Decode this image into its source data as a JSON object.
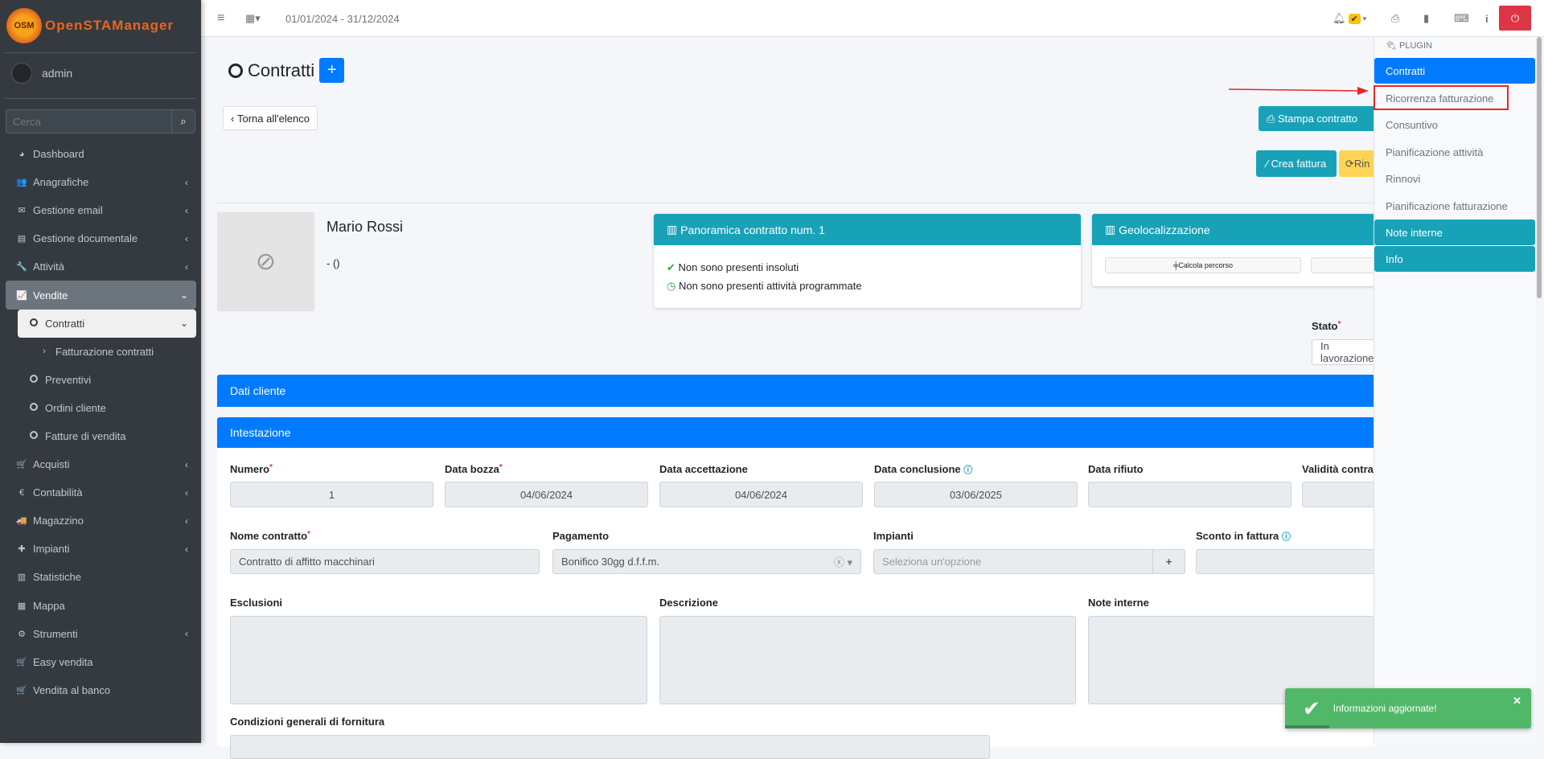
{
  "app": {
    "brand": "OpenSTAManager",
    "logo_text": "OSM",
    "user": "admin",
    "search_placeholder": "Cerca"
  },
  "sidebar": {
    "items": [
      {
        "label": "Dashboard",
        "icon": "dashboard-icon",
        "glyph": "◕",
        "chev": ""
      },
      {
        "label": "Anagrafiche",
        "icon": "users-icon",
        "glyph": "👥",
        "chev": "‹"
      },
      {
        "label": "Gestione email",
        "icon": "envelope-icon",
        "glyph": "✉",
        "chev": "‹"
      },
      {
        "label": "Gestione documentale",
        "icon": "file-icon",
        "glyph": "▤",
        "chev": "‹"
      },
      {
        "label": "Attività",
        "icon": "wrench-icon",
        "glyph": "🔧",
        "chev": "‹"
      },
      {
        "label": "Vendite",
        "icon": "chart-icon",
        "glyph": "📈",
        "chev": "⌄",
        "cls": "active"
      },
      {
        "label": "Contratti",
        "icon": "circle-icon",
        "glyph": "○",
        "chev": "⌄",
        "cls": "cur"
      },
      {
        "label": "Fatturazione contratti",
        "icon": "chevron-right-icon",
        "glyph": "›",
        "chev": "",
        "cls": "sub2"
      },
      {
        "label": "Preventivi",
        "icon": "circle-icon",
        "glyph": "○",
        "chev": "",
        "cls": "sub"
      },
      {
        "label": "Ordini cliente",
        "icon": "circle-icon",
        "glyph": "○",
        "chev": "",
        "cls": "sub"
      },
      {
        "label": "Fatture di vendita",
        "icon": "circle-icon",
        "glyph": "○",
        "chev": "",
        "cls": "sub"
      },
      {
        "label": "Acquisti",
        "icon": "cart-icon",
        "glyph": "🛒",
        "chev": "‹"
      },
      {
        "label": "Contabilità",
        "icon": "euro-icon",
        "glyph": "€",
        "chev": "‹"
      },
      {
        "label": "Magazzino",
        "icon": "truck-icon",
        "glyph": "🚚",
        "chev": "‹"
      },
      {
        "label": "Impianti",
        "icon": "puzzle-icon",
        "glyph": "✚",
        "chev": "‹"
      },
      {
        "label": "Statistiche",
        "icon": "bar-chart-icon",
        "glyph": "▥",
        "chev": ""
      },
      {
        "label": "Mappa",
        "icon": "map-icon",
        "glyph": "▦",
        "chev": ""
      },
      {
        "label": "Strumenti",
        "icon": "cog-icon",
        "glyph": "⚙",
        "chev": "‹"
      },
      {
        "label": "Easy vendita",
        "icon": "cart-icon",
        "glyph": "🛒",
        "chev": ""
      },
      {
        "label": "Vendita al banco",
        "icon": "cart-icon",
        "glyph": "🛒",
        "chev": ""
      }
    ]
  },
  "topbar": {
    "date_range": "01/01/2024 - 31/12/2024"
  },
  "page": {
    "title": "Contratti",
    "back": "Torna all'elenco",
    "print": "Stampa contratto",
    "invoice": "Crea fattura",
    "renew": "Rin"
  },
  "client": {
    "name": "Mario Rossi",
    "sub": "- ()"
  },
  "overview": {
    "title": "Panoramica contratto num. 1",
    "lines": [
      "Non sono presenti insoluti",
      "Non sono presenti attività programmate"
    ]
  },
  "geo": {
    "title": "Geolocalizzazione",
    "route": "Calcola percorso"
  },
  "stato": {
    "label": "Stato",
    "value": "In lavorazione"
  },
  "sections": {
    "client": "Dati cliente",
    "header": "Intestazione"
  },
  "fields": {
    "row1": [
      {
        "label": "Numero",
        "req": "*",
        "value": "1"
      },
      {
        "label": "Data bozza",
        "req": "*",
        "value": "04/06/2024"
      },
      {
        "label": "Data accettazione",
        "value": "04/06/2024"
      },
      {
        "label": "Data conclusione",
        "help": "?",
        "value": "03/06/2025"
      },
      {
        "label": "Data rifiuto",
        "value": ""
      },
      {
        "label": "Validità contratto",
        "value": ""
      }
    ],
    "nome": {
      "label": "Nome contratto",
      "req": "*",
      "value": "Contratto di affitto macchinari"
    },
    "pagamento": {
      "label": "Pagamento",
      "value": "Bonifico 30gg d.f.f.m."
    },
    "impianti": {
      "label": "Impianti",
      "placeholder": "Seleziona un'opzione"
    },
    "sconto": {
      "label": "Sconto in fattura",
      "help": "?"
    },
    "esclusioni": "Esclusioni",
    "descrizione": "Descrizione",
    "note": "Note interne",
    "condizioni": "Condizioni generali di fornitura"
  },
  "panel": {
    "header": "PLUGIN",
    "items": [
      "Contratti",
      "Ricorrenza fatturazione",
      "Consuntivo",
      "Pianificazione attività",
      "Rinnovi",
      "Pianificazione fatturazione",
      "Note interne",
      "Info"
    ]
  },
  "toast": {
    "message": "Informazioni aggiornate!",
    "progress": 0.18
  },
  "colors": {
    "primary": "#007bff",
    "info": "#17a2b8",
    "warning": "#ffc107",
    "danger": "#dc3545",
    "success": "#51b86a",
    "highlight": "#ff0000"
  }
}
